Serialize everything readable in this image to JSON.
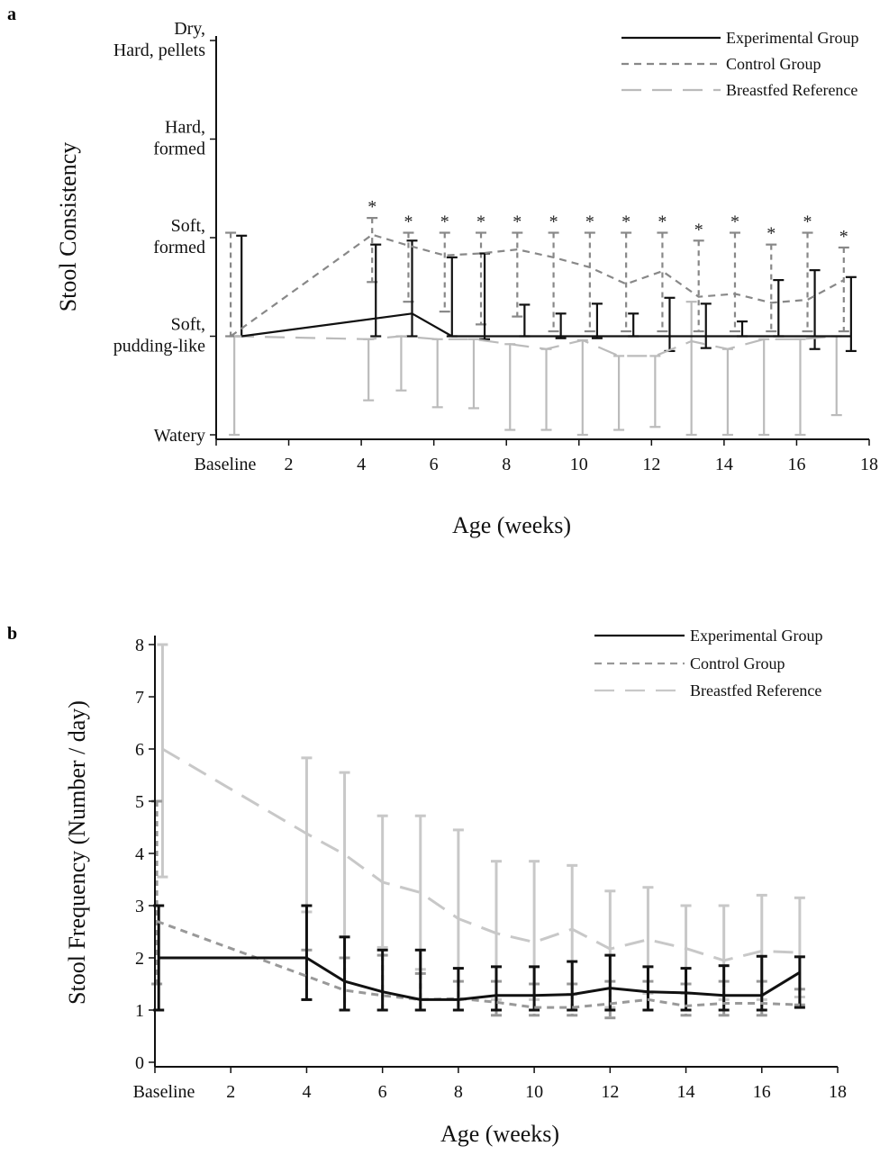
{
  "chart_data": [
    {
      "panel_label": "a",
      "type": "line",
      "xlabel": "Age (weeks)",
      "ylabel": "Stool Consistency",
      "xlim": [
        0,
        18
      ],
      "ylim": [
        1,
        5
      ],
      "x_ticks": [
        {
          "value": 0,
          "label": "Baseline"
        },
        {
          "value": 2,
          "label": "2"
        },
        {
          "value": 4,
          "label": "4"
        },
        {
          "value": 6,
          "label": "6"
        },
        {
          "value": 8,
          "label": "8"
        },
        {
          "value": 10,
          "label": "10"
        },
        {
          "value": 12,
          "label": "12"
        },
        {
          "value": 14,
          "label": "14"
        },
        {
          "value": 16,
          "label": "16"
        },
        {
          "value": 18,
          "label": "18"
        }
      ],
      "y_ticks": [
        {
          "value": 5,
          "label": [
            "Dry,",
            "Hard, pellets"
          ]
        },
        {
          "value": 4,
          "label": [
            "Hard,",
            "formed"
          ]
        },
        {
          "value": 3,
          "label": [
            "Soft,",
            "formed"
          ]
        },
        {
          "value": 2,
          "label": [
            "Soft,",
            "pudding-like"
          ]
        },
        {
          "value": 1,
          "label": [
            "Watery"
          ]
        }
      ],
      "legend_position": "top-right",
      "grid": false,
      "series": [
        {
          "name": "Experimental Group",
          "color": "#111111",
          "dash": "solid",
          "x": [
            0.7,
            5.4,
            6.5,
            8.5,
            9.5,
            10.5,
            11.5,
            12.5,
            13.5,
            14.5,
            15.5,
            16.5,
            17.5
          ],
          "y": [
            2.0,
            2.23,
            2.0,
            2.0,
            2.0,
            2.0,
            2.0,
            2.0,
            2.0,
            2.0,
            2.0,
            2.0,
            2.0
          ],
          "err_upper": [
            3.02,
            2.97,
            2.8,
            2.32,
            2.23,
            2.33,
            2.23,
            2.39,
            2.33,
            2.15,
            2.57,
            2.67,
            2.6
          ],
          "err_lower": [
            null,
            2.0,
            null,
            null,
            null,
            1.98,
            null,
            1.85,
            1.88,
            null,
            null,
            1.87,
            1.85
          ],
          "err_x": [
            0.7,
            4.4,
            5.4,
            6.5,
            7.4,
            8.5,
            9.5,
            10.5,
            11.5,
            12.5,
            13.5,
            14.5,
            15.5,
            16.5,
            17.5
          ],
          "err_hi": [
            3.02,
            2.93,
            2.97,
            2.8,
            2.84,
            2.32,
            2.23,
            2.33,
            2.23,
            2.39,
            2.33,
            2.15,
            2.57,
            2.67,
            2.6
          ],
          "err_lo": [
            2.0,
            2.0,
            2.0,
            2.0,
            1.97,
            2.0,
            1.98,
            1.98,
            2.0,
            1.85,
            1.88,
            2.0,
            2.0,
            1.87,
            1.85
          ]
        },
        {
          "name": "Control Group",
          "color": "#888888",
          "dash": "dashed",
          "x": [
            0.4,
            4.3,
            5.3,
            6.3,
            7.3,
            8.3,
            9.3,
            10.3,
            11.3,
            12.3,
            13.3,
            14.3,
            15.3,
            16.3,
            17.3
          ],
          "y": [
            2.0,
            3.03,
            2.92,
            2.82,
            2.84,
            2.88,
            2.8,
            2.7,
            2.53,
            2.66,
            2.4,
            2.43,
            2.34,
            2.37,
            2.57
          ],
          "err_hi": [
            3.05,
            3.2,
            3.05,
            3.05,
            3.05,
            3.05,
            3.05,
            3.05,
            3.05,
            3.05,
            2.97,
            3.05,
            2.93,
            3.05,
            2.9
          ],
          "err_lo": [
            2.0,
            2.55,
            2.35,
            2.25,
            2.12,
            2.2,
            2.05,
            2.05,
            2.05,
            2.05,
            2.05,
            2.05,
            2.05,
            2.05,
            2.05
          ]
        },
        {
          "name": "Breastfed Reference",
          "color": "#bbbbbb",
          "dash": "long-dash",
          "x": [
            0.5,
            4.2,
            5.1,
            6.1,
            7.1,
            8.1,
            9.1,
            10.1,
            11.1,
            12.1,
            13.1,
            14.1,
            15.1,
            16.1,
            17.1
          ],
          "y": [
            2.0,
            1.97,
            2.0,
            1.97,
            1.97,
            1.92,
            1.87,
            1.96,
            1.8,
            1.8,
            1.95,
            1.87,
            1.97,
            1.97,
            2.0
          ],
          "err_hi": [
            2.0,
            1.97,
            2.0,
            1.97,
            1.97,
            1.92,
            1.87,
            1.96,
            1.8,
            1.8,
            2.35,
            1.87,
            1.97,
            1.97,
            2.0
          ],
          "err_lo": [
            1.0,
            1.35,
            1.45,
            1.28,
            1.27,
            1.05,
            1.05,
            1.0,
            1.05,
            1.08,
            1.0,
            1.0,
            1.0,
            1.0,
            1.2
          ]
        }
      ],
      "significance_markers": {
        "symbol": "*",
        "x": [
          4.3,
          5.3,
          6.3,
          7.3,
          8.3,
          9.3,
          10.3,
          11.3,
          12.3,
          13.3,
          14.3,
          15.3,
          16.3,
          17.3
        ]
      }
    },
    {
      "panel_label": "b",
      "type": "line",
      "xlabel": "Age (weeks)",
      "ylabel": "Stool Frequency (Number / day)",
      "xlim": [
        0,
        18
      ],
      "ylim": [
        0,
        8
      ],
      "x_ticks": [
        {
          "value": 0,
          "label": "Baseline"
        },
        {
          "value": 2,
          "label": "2"
        },
        {
          "value": 4,
          "label": "4"
        },
        {
          "value": 6,
          "label": "6"
        },
        {
          "value": 8,
          "label": "8"
        },
        {
          "value": 10,
          "label": "10"
        },
        {
          "value": 12,
          "label": "12"
        },
        {
          "value": 14,
          "label": "14"
        },
        {
          "value": 16,
          "label": "16"
        },
        {
          "value": 18,
          "label": "18"
        }
      ],
      "y_ticks": [
        {
          "value": 0,
          "label": "0"
        },
        {
          "value": 1,
          "label": "1"
        },
        {
          "value": 2,
          "label": "2"
        },
        {
          "value": 3,
          "label": "3"
        },
        {
          "value": 4,
          "label": "4"
        },
        {
          "value": 5,
          "label": "5"
        },
        {
          "value": 6,
          "label": "6"
        },
        {
          "value": 7,
          "label": "7"
        },
        {
          "value": 8,
          "label": "8"
        }
      ],
      "legend_position": "top-right",
      "grid": false,
      "series": [
        {
          "name": "Experimental Group",
          "color": "#111111",
          "dash": "solid",
          "x": [
            0.1,
            4,
            5,
            6,
            7,
            8,
            9,
            10,
            11,
            12,
            13,
            14,
            15,
            16,
            17
          ],
          "y": [
            2.0,
            2.0,
            1.55,
            1.35,
            1.2,
            1.2,
            1.28,
            1.28,
            1.3,
            1.42,
            1.35,
            1.33,
            1.28,
            1.28,
            1.72
          ],
          "err_hi": [
            3.0,
            3.0,
            2.4,
            2.15,
            2.15,
            1.8,
            1.83,
            1.83,
            1.93,
            2.05,
            1.83,
            1.8,
            1.85,
            2.03,
            2.02
          ],
          "err_lo": [
            1.0,
            1.2,
            1.0,
            1.0,
            1.0,
            1.0,
            1.0,
            1.0,
            1.0,
            1.0,
            1.0,
            1.0,
            1.0,
            1.0,
            1.05
          ]
        },
        {
          "name": "Control Group",
          "color": "#999999",
          "dash": "dashed",
          "x": [
            0.05,
            4,
            5,
            6,
            7,
            8,
            9,
            10,
            11,
            12,
            13,
            14,
            15,
            16,
            17
          ],
          "y": [
            2.7,
            1.65,
            1.38,
            1.28,
            1.2,
            1.22,
            1.15,
            1.05,
            1.05,
            1.12,
            1.2,
            1.08,
            1.13,
            1.13,
            1.1
          ],
          "err_hi": [
            5.0,
            2.15,
            2.0,
            2.05,
            1.7,
            1.55,
            1.55,
            1.5,
            1.5,
            1.55,
            1.55,
            1.5,
            1.55,
            1.55,
            1.4
          ],
          "err_lo": [
            1.5,
            1.2,
            1.0,
            1.0,
            1.0,
            1.0,
            0.9,
            0.9,
            0.9,
            0.85,
            1.0,
            0.9,
            0.9,
            0.9,
            1.1
          ]
        },
        {
          "name": "Breastfed Reference",
          "color": "#c8c8c8",
          "dash": "long-dash",
          "x": [
            0.2,
            4,
            5,
            6,
            7,
            8,
            9,
            10,
            11,
            12,
            13,
            14,
            15,
            16,
            17
          ],
          "y": [
            6.0,
            4.38,
            3.98,
            3.45,
            3.25,
            2.75,
            2.47,
            2.3,
            2.55,
            2.17,
            2.35,
            2.18,
            1.95,
            2.13,
            2.1
          ],
          "err_hi": [
            8.0,
            5.83,
            5.55,
            4.72,
            4.72,
            4.45,
            3.85,
            3.85,
            3.77,
            3.28,
            3.35,
            3.0,
            3.0,
            3.2,
            3.15
          ],
          "err_lo": [
            3.55,
            2.88,
            2.4,
            2.2,
            1.78,
            1.2,
            1.2,
            1.2,
            1.3,
            1.05,
            1.32,
            1.32,
            1.2,
            1.2,
            1.25
          ]
        }
      ]
    }
  ]
}
